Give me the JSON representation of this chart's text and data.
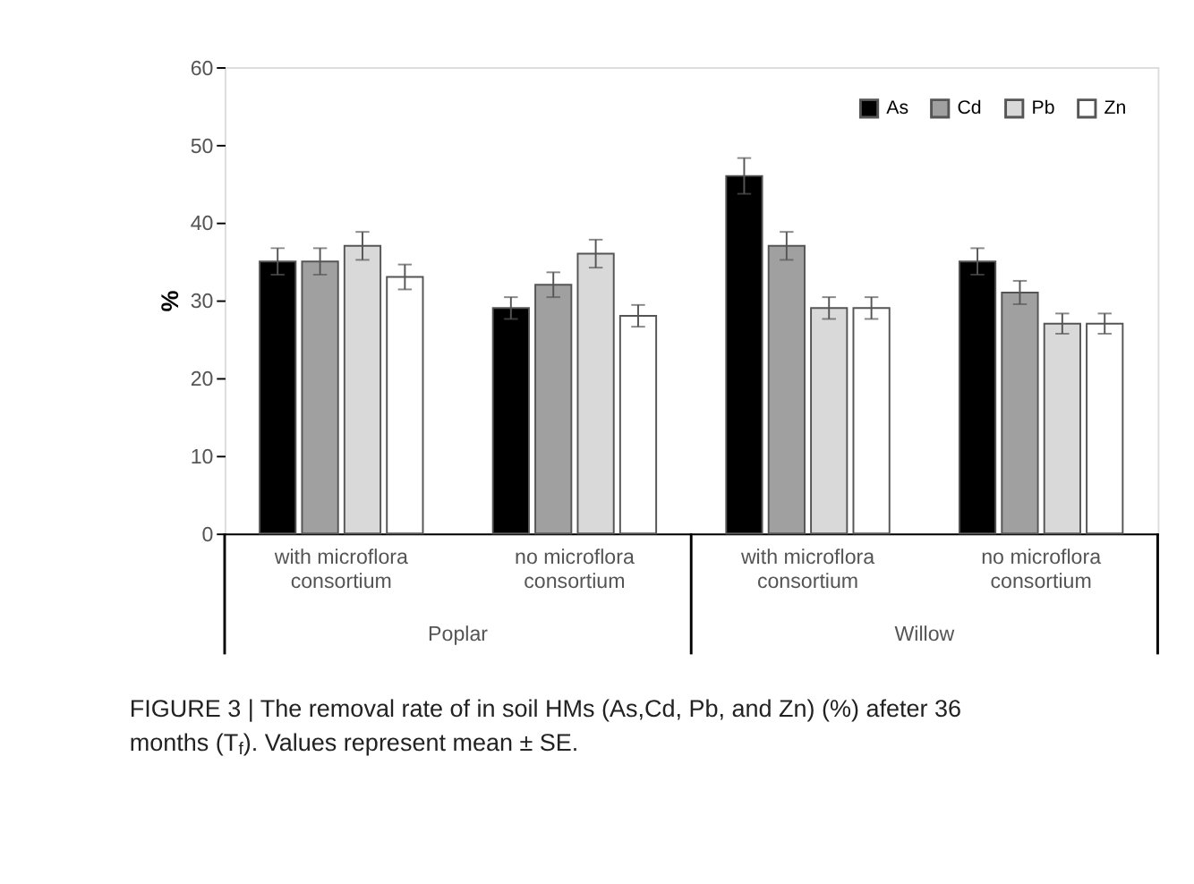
{
  "chart_data": {
    "type": "bar",
    "ylabel": "%",
    "categories": [
      "with microflora consortium",
      "no microflora consortium",
      "with microflora consortium",
      "no microflora consortium"
    ],
    "series": [
      {
        "name": "As",
        "color": "#000000",
        "values": [
          35,
          29,
          46,
          35
        ],
        "errors": [
          1.7,
          1.4,
          2.3,
          1.7
        ]
      },
      {
        "name": "Cd",
        "color": "#a0a0a0",
        "values": [
          35,
          32,
          37,
          31
        ],
        "errors": [
          1.7,
          1.6,
          1.8,
          1.5
        ]
      },
      {
        "name": "Pb",
        "color": "#d9d9d9",
        "values": [
          37,
          36,
          29,
          27
        ],
        "errors": [
          1.8,
          1.8,
          1.4,
          1.3
        ]
      },
      {
        "name": "Zn",
        "color": "#ffffff",
        "values": [
          33,
          28,
          29,
          27
        ],
        "errors": [
          1.6,
          1.4,
          1.4,
          1.3
        ]
      }
    ],
    "ylim": [
      0,
      60
    ],
    "yticks": [
      0,
      10,
      20,
      30,
      40,
      50,
      60
    ],
    "grid": false,
    "legend": "top right",
    "annotations": [
      "Poplar",
      "Willow",
      "FIGURE 3 | The removal rate of in soil HMs (As,Cd, Pb, and Zn) (%) afeter 36 months (T$_{f}$). Values represent mean ± SE."
    ]
  }
}
